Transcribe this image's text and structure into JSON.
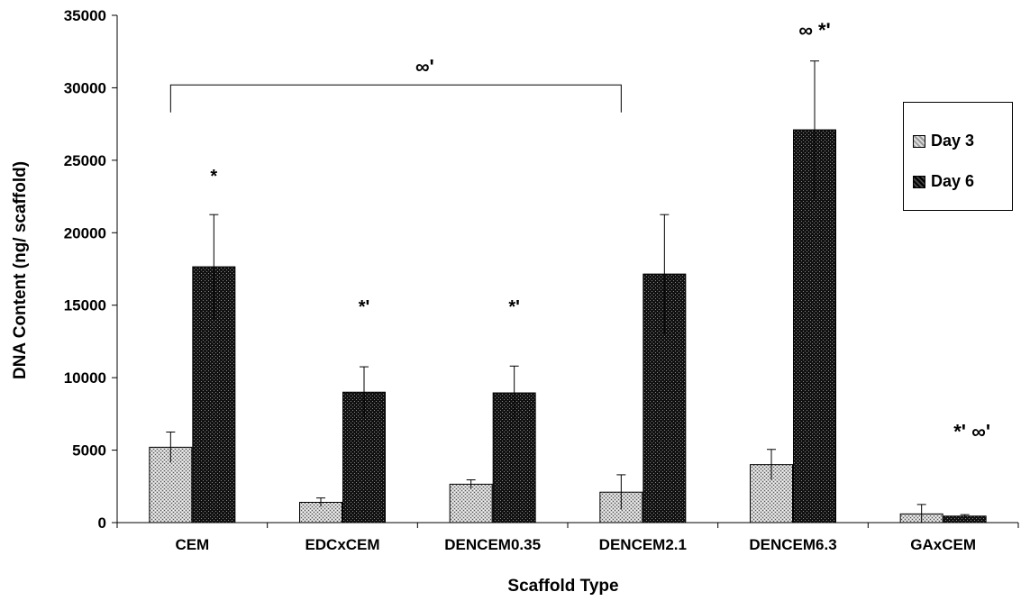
{
  "chart_data": {
    "type": "bar",
    "xlabel": "Scaffold Type",
    "ylabel": "DNA Content (ng/ scaffold)",
    "ylim": [
      0,
      35000
    ],
    "yticks": [
      "0",
      "5000",
      "10000",
      "15000",
      "20000",
      "25000",
      "30000",
      "35000"
    ],
    "categories": [
      "CEM",
      "EDCxCEM",
      "DENCEM0.35",
      "DENCEM2.1",
      "DENCEM6.3",
      "GAxCEM"
    ],
    "series": [
      {
        "name": "Day 3",
        "values": [
          5200,
          1400,
          2650,
          2100,
          4000,
          600
        ],
        "errors": [
          1050,
          300,
          300,
          1200,
          1050,
          650
        ],
        "color": "#bfbfbf"
      },
      {
        "name": "Day 6",
        "values": [
          17650,
          9000,
          8950,
          17150,
          27100,
          450
        ],
        "errors": [
          3600,
          1750,
          1850,
          4100,
          4750,
          100
        ],
        "color": "#1a1a1a"
      }
    ],
    "legend_position": "right",
    "grid": false,
    "annotations": [
      {
        "text": "*",
        "category": "CEM",
        "y": 23500
      },
      {
        "text": "*'",
        "category": "EDCxCEM",
        "y": 14500
      },
      {
        "text": "*'",
        "category": "DENCEM0.35",
        "y": 14500
      },
      {
        "text": "∞ *'",
        "category": "DENCEM6.3",
        "y": 33500
      },
      {
        "text": "*' ∞'",
        "category": "GAxCEM",
        "y": 5800
      },
      {
        "text": "∞'",
        "category": "bracket CEM–DENCEM2.1",
        "y": 31000
      }
    ],
    "bracket": {
      "from": "CEM",
      "to": "DENCEM2.1",
      "y": 30200,
      "label": "∞'"
    }
  }
}
